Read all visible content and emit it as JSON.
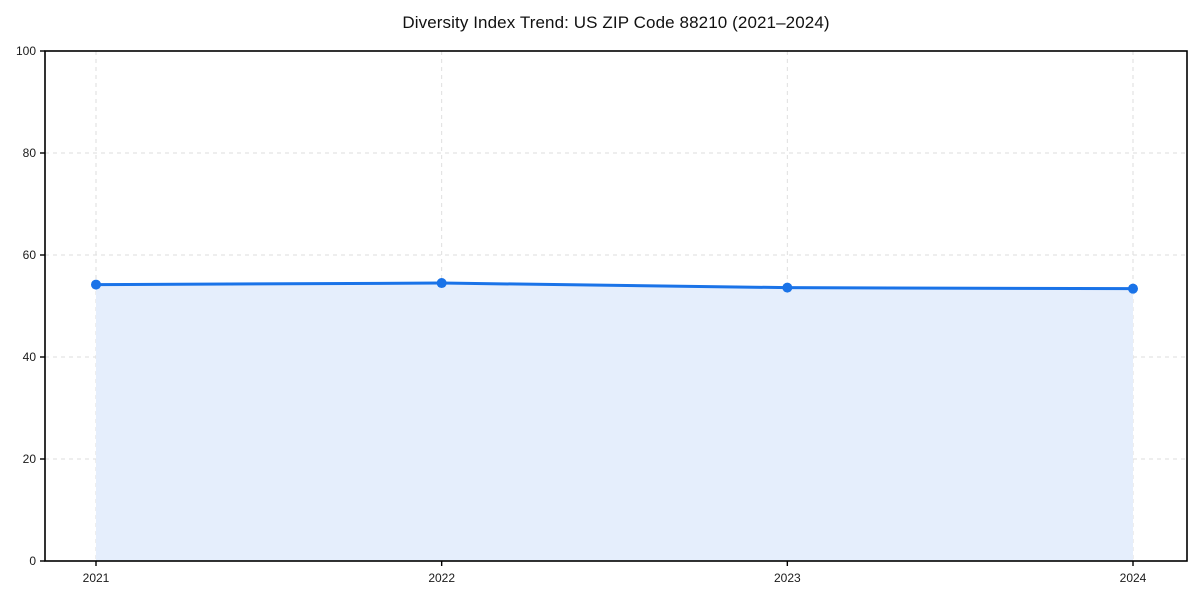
{
  "chart_data": {
    "type": "area",
    "title": "Diversity Index Trend: US ZIP Code 88210 (2021–2024)",
    "series_name": "Diversity Index",
    "x": [
      "2021",
      "2022",
      "2023",
      "2024"
    ],
    "values": [
      54.2,
      54.5,
      53.6,
      53.4
    ],
    "xlabel": "",
    "ylabel": "",
    "ylim": [
      0,
      100
    ],
    "yticks": [
      0,
      20,
      40,
      60,
      80,
      100
    ],
    "grid": "dashed",
    "legend": "none",
    "colors": {
      "line": "#1a73e8",
      "marker": "#1a73e8",
      "fill": "#e5eefc",
      "grid": "#dedede",
      "spine": "#000000",
      "text": "#1a1a1a"
    }
  }
}
